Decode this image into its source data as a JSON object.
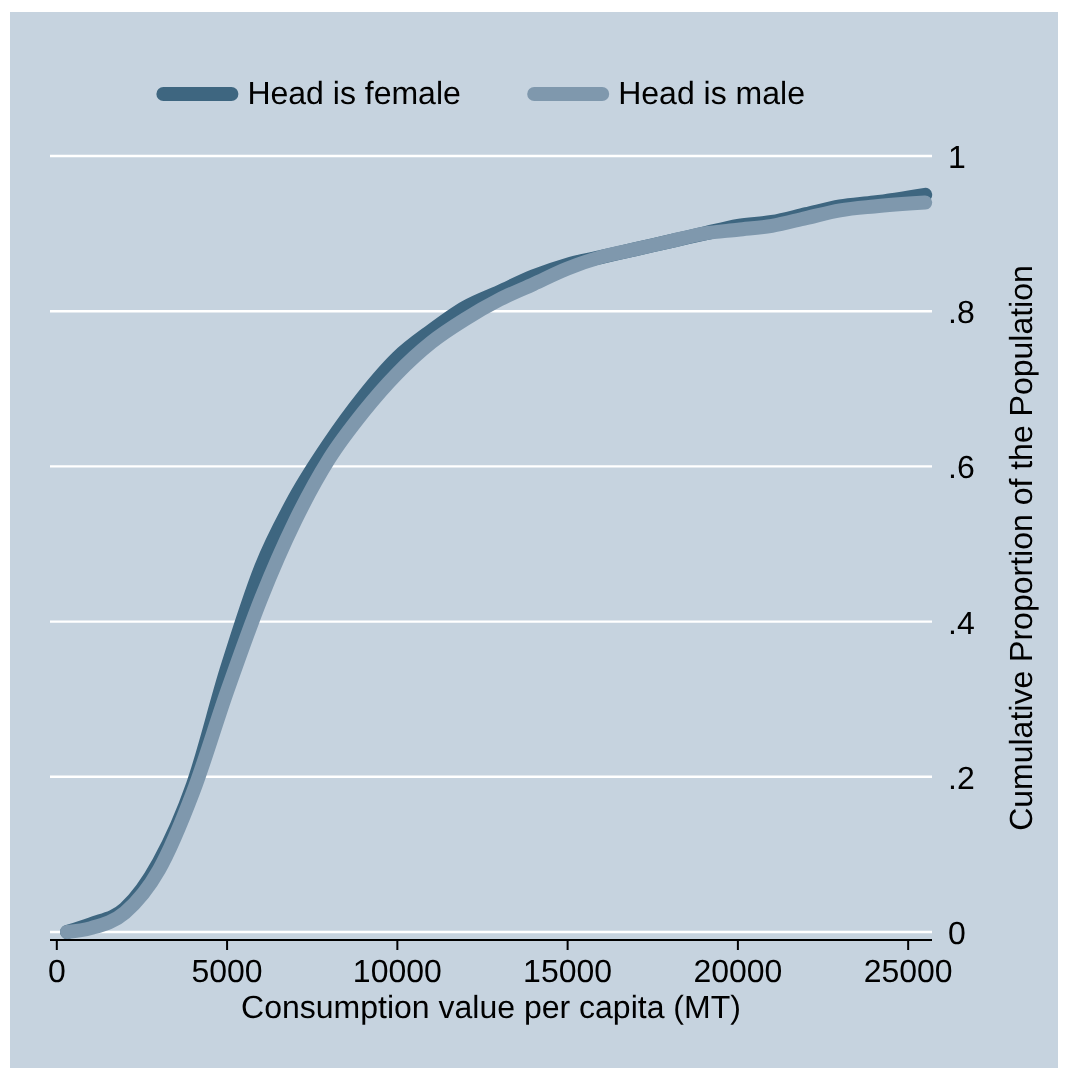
{
  "chart_data": {
    "type": "line",
    "xlabel": "Consumption value per capita (MT)",
    "ylabel": "Cumulative Proportion of the Population",
    "xlim": [
      -200,
      25700
    ],
    "xticks": [
      0,
      5000,
      10000,
      15000,
      20000,
      25000
    ],
    "ylim": [
      0,
      1
    ],
    "yticks": [
      0,
      {
        "value": 0.2,
        "label": ".2"
      },
      {
        "value": 0.4,
        "label": ".4"
      },
      {
        "value": 0.6,
        "label": ".6"
      },
      {
        "value": 0.8,
        "label": ".8"
      },
      1
    ],
    "grid": "y",
    "legend": "top",
    "line_style": "solid",
    "marker": "none",
    "series": [
      {
        "name": "Head is female",
        "color": "#3e6680",
        "x": [
          300,
          1000,
          2000,
          3000,
          4000,
          5000,
          6000,
          7000,
          8000,
          9000,
          10000,
          11000,
          12000,
          13000,
          14000,
          15000,
          16000,
          17000,
          18000,
          19000,
          20000,
          21000,
          22000,
          23000,
          24000,
          25500
        ],
        "values": [
          0,
          0.01,
          0.03,
          0.09,
          0.19,
          0.34,
          0.47,
          0.56,
          0.63,
          0.69,
          0.74,
          0.775,
          0.805,
          0.825,
          0.845,
          0.86,
          0.87,
          0.88,
          0.89,
          0.9,
          0.91,
          0.915,
          0.925,
          0.935,
          0.94,
          0.95
        ]
      },
      {
        "name": "Head is male",
        "color": "#7f98ad",
        "x": [
          300,
          1000,
          2000,
          3000,
          4000,
          5000,
          6000,
          7000,
          8000,
          9000,
          10000,
          11000,
          12000,
          13000,
          14000,
          15000,
          16000,
          17000,
          18000,
          19000,
          20000,
          21000,
          22000,
          23000,
          24000,
          25500
        ],
        "values": [
          0,
          0.005,
          0.025,
          0.08,
          0.18,
          0.31,
          0.43,
          0.53,
          0.61,
          0.67,
          0.72,
          0.76,
          0.79,
          0.815,
          0.835,
          0.855,
          0.87,
          0.88,
          0.89,
          0.9,
          0.905,
          0.91,
          0.92,
          0.93,
          0.935,
          0.94
        ]
      }
    ]
  }
}
